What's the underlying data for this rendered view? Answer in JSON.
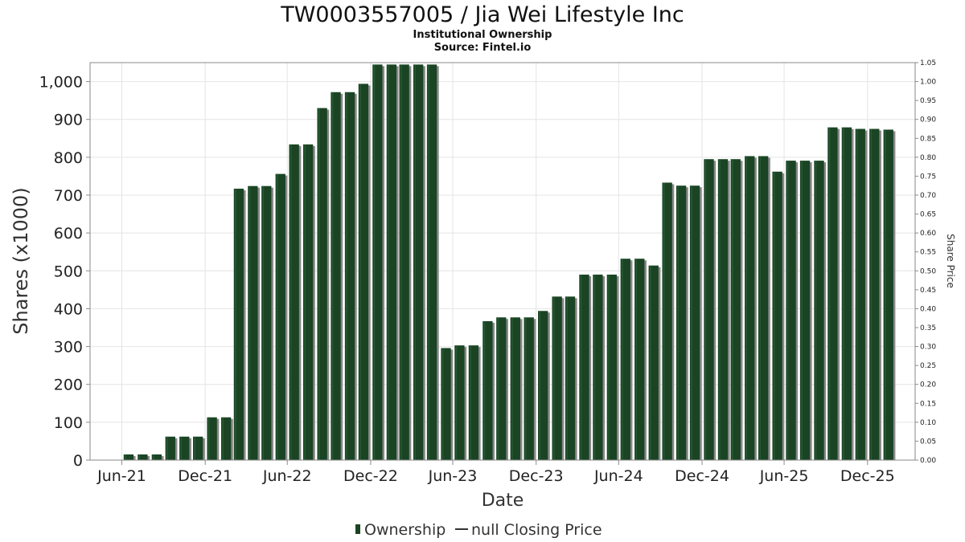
{
  "header": {
    "title": "TW0003557005 / Jia Wei Lifestyle Inc",
    "subtitle": "Institutional Ownership",
    "source": "Source: Fintel.io"
  },
  "legend": {
    "ownership_label": "Ownership",
    "price_label": "null Closing Price",
    "placement": "bottom-center"
  },
  "colors": {
    "bar": "#1a4424",
    "bar_shadow": "#888888",
    "bar_highlight": "#2e6b3a",
    "grid": "#e4e4e4",
    "frame": "#8a8a8a"
  },
  "chart_data": {
    "type": "bar",
    "title": "TW0003557005 / Jia Wei Lifestyle Inc",
    "subtitle": "Institutional Ownership",
    "xlabel": "Date",
    "ylabel": "Shares (x1000)",
    "y2label": "Share Price",
    "grid": true,
    "x_range": [
      "2021-04-21",
      "2026-04-15"
    ],
    "x_ticks": [
      {
        "date": "2021-06-30",
        "label": "Jun-21"
      },
      {
        "date": "2021-12-31",
        "label": "Dec-21"
      },
      {
        "date": "2022-06-30",
        "label": "Jun-22"
      },
      {
        "date": "2022-12-31",
        "label": "Dec-22"
      },
      {
        "date": "2023-06-30",
        "label": "Jun-23"
      },
      {
        "date": "2023-12-31",
        "label": "Dec-23"
      },
      {
        "date": "2024-06-30",
        "label": "Jun-24"
      },
      {
        "date": "2024-12-31",
        "label": "Dec-24"
      },
      {
        "date": "2025-06-30",
        "label": "Jun-25"
      },
      {
        "date": "2025-12-31",
        "label": "Dec-25"
      }
    ],
    "ylim": [
      0,
      1050
    ],
    "y_ticks": [
      {
        "value": 0,
        "label": "0"
      },
      {
        "value": 100,
        "label": "100"
      },
      {
        "value": 200,
        "label": "200"
      },
      {
        "value": 300,
        "label": "300"
      },
      {
        "value": 400,
        "label": "400"
      },
      {
        "value": 500,
        "label": "500"
      },
      {
        "value": 600,
        "label": "600"
      },
      {
        "value": 700,
        "label": "700"
      },
      {
        "value": 800,
        "label": "800"
      },
      {
        "value": 900,
        "label": "900"
      },
      {
        "value": 1000,
        "label": "1,000"
      }
    ],
    "y2lim": [
      0,
      1.05
    ],
    "y2_ticks": [
      {
        "value": 0.0,
        "label": "0.00"
      },
      {
        "value": 0.05,
        "label": "0.05"
      },
      {
        "value": 0.1,
        "label": "0.10"
      },
      {
        "value": 0.15,
        "label": "0.15"
      },
      {
        "value": 0.2,
        "label": "0.20"
      },
      {
        "value": 0.25,
        "label": "0.25"
      },
      {
        "value": 0.3,
        "label": "0.30"
      },
      {
        "value": 0.35,
        "label": "0.35"
      },
      {
        "value": 0.4,
        "label": "0.40"
      },
      {
        "value": 0.45,
        "label": "0.45"
      },
      {
        "value": 0.5,
        "label": "0.50"
      },
      {
        "value": 0.55,
        "label": "0.55"
      },
      {
        "value": 0.6,
        "label": "0.60"
      },
      {
        "value": 0.65,
        "label": "0.65"
      },
      {
        "value": 0.7,
        "label": "0.70"
      },
      {
        "value": 0.75,
        "label": "0.75"
      },
      {
        "value": 0.8,
        "label": "0.80"
      },
      {
        "value": 0.85,
        "label": "0.85"
      },
      {
        "value": 0.9,
        "label": "0.90"
      },
      {
        "value": 0.95,
        "label": "0.95"
      },
      {
        "value": 1.0,
        "label": "1.00"
      },
      {
        "value": 1.05,
        "label": "1.05"
      }
    ],
    "series": [
      {
        "name": "Ownership",
        "points": [
          {
            "date": "2021-07-15",
            "value": 15
          },
          {
            "date": "2021-08-15",
            "value": 15
          },
          {
            "date": "2021-09-15",
            "value": 15
          },
          {
            "date": "2021-10-15",
            "value": 62
          },
          {
            "date": "2021-11-15",
            "value": 62
          },
          {
            "date": "2021-12-15",
            "value": 62
          },
          {
            "date": "2022-01-15",
            "value": 113
          },
          {
            "date": "2022-02-15",
            "value": 113
          },
          {
            "date": "2022-03-15",
            "value": 717
          },
          {
            "date": "2022-04-15",
            "value": 724
          },
          {
            "date": "2022-05-15",
            "value": 724
          },
          {
            "date": "2022-06-15",
            "value": 756
          },
          {
            "date": "2022-07-15",
            "value": 834
          },
          {
            "date": "2022-08-15",
            "value": 834
          },
          {
            "date": "2022-09-15",
            "value": 930
          },
          {
            "date": "2022-10-15",
            "value": 972
          },
          {
            "date": "2022-11-15",
            "value": 972
          },
          {
            "date": "2022-12-15",
            "value": 994
          },
          {
            "date": "2023-01-15",
            "value": 1045
          },
          {
            "date": "2023-02-15",
            "value": 1045
          },
          {
            "date": "2023-03-15",
            "value": 1045
          },
          {
            "date": "2023-04-15",
            "value": 1045
          },
          {
            "date": "2023-05-15",
            "value": 1045
          },
          {
            "date": "2023-06-15",
            "value": 296
          },
          {
            "date": "2023-07-15",
            "value": 303
          },
          {
            "date": "2023-08-15",
            "value": 303
          },
          {
            "date": "2023-09-15",
            "value": 367
          },
          {
            "date": "2023-10-15",
            "value": 377
          },
          {
            "date": "2023-11-15",
            "value": 377
          },
          {
            "date": "2023-12-15",
            "value": 377
          },
          {
            "date": "2024-01-15",
            "value": 394
          },
          {
            "date": "2024-02-15",
            "value": 432
          },
          {
            "date": "2024-03-15",
            "value": 432
          },
          {
            "date": "2024-04-15",
            "value": 490
          },
          {
            "date": "2024-05-15",
            "value": 490
          },
          {
            "date": "2024-06-15",
            "value": 490
          },
          {
            "date": "2024-07-15",
            "value": 532
          },
          {
            "date": "2024-08-15",
            "value": 532
          },
          {
            "date": "2024-09-15",
            "value": 514
          },
          {
            "date": "2024-10-15",
            "value": 733
          },
          {
            "date": "2024-11-15",
            "value": 725
          },
          {
            "date": "2024-12-15",
            "value": 725
          },
          {
            "date": "2025-01-15",
            "value": 795
          },
          {
            "date": "2025-02-15",
            "value": 795
          },
          {
            "date": "2025-03-15",
            "value": 795
          },
          {
            "date": "2025-04-15",
            "value": 803
          },
          {
            "date": "2025-05-15",
            "value": 803
          },
          {
            "date": "2025-06-15",
            "value": 762
          },
          {
            "date": "2025-07-15",
            "value": 791
          },
          {
            "date": "2025-08-15",
            "value": 791
          },
          {
            "date": "2025-09-15",
            "value": 791
          },
          {
            "date": "2025-10-15",
            "value": 879
          },
          {
            "date": "2025-11-15",
            "value": 879
          },
          {
            "date": "2025-12-15",
            "value": 875
          },
          {
            "date": "2026-01-15",
            "value": 875
          },
          {
            "date": "2026-02-15",
            "value": 873
          }
        ]
      }
    ]
  }
}
